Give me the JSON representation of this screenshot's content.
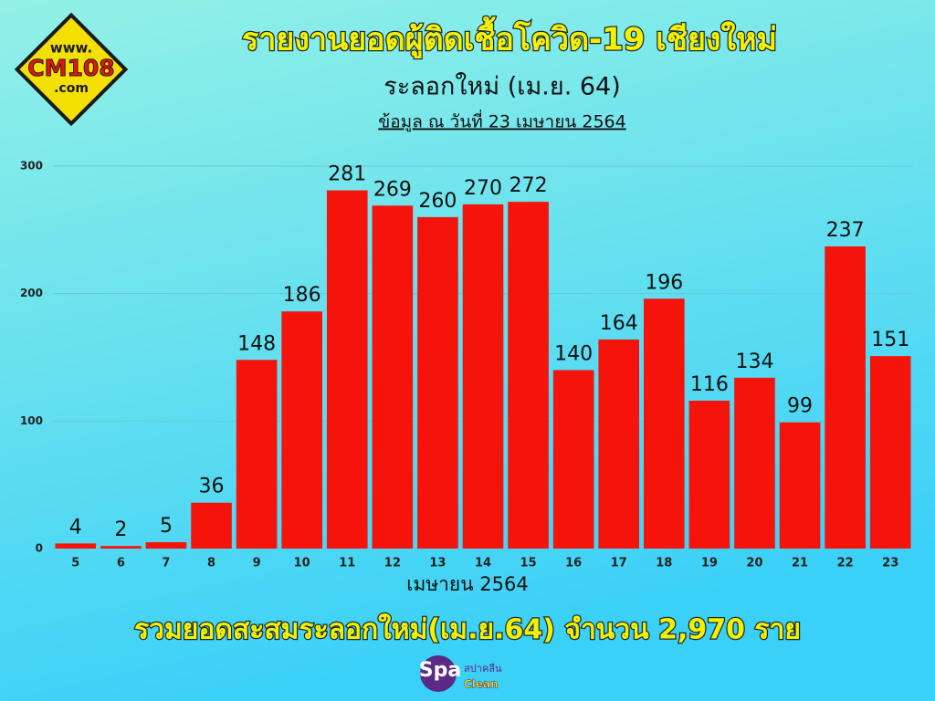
{
  "chart_data": {
    "type": "bar",
    "title": "รายงานยอดผู้ติดเชื้อโควิด-19 เชียงใหม่",
    "subtitle": "ระลอกใหม่ (เม.ย. 64)",
    "note": "ข้อมูล ณ วันที่ 23 เมษายน 2564",
    "x_label": "เมษายน 2564",
    "footer": "รวมยอดสะสมระลอกใหม่(เม.ย.64) จำนวน 2,970 ราย",
    "categories": [
      "5",
      "6",
      "7",
      "8",
      "9",
      "10",
      "11",
      "12",
      "13",
      "14",
      "15",
      "16",
      "17",
      "18",
      "19",
      "20",
      "21",
      "22",
      "23"
    ],
    "values": [
      4,
      2,
      5,
      36,
      148,
      186,
      281,
      269,
      260,
      270,
      272,
      140,
      164,
      196,
      116,
      134,
      99,
      237,
      151
    ],
    "color": "#f4140c",
    "ylim": [
      0,
      300
    ],
    "yticks": [
      0,
      100,
      200,
      300
    ],
    "grid": true
  },
  "logo": [
    "www.",
    "CM108",
    ".com"
  ],
  "sponsor": [
    "Spa",
    "สปาคลีน",
    "Clean"
  ]
}
